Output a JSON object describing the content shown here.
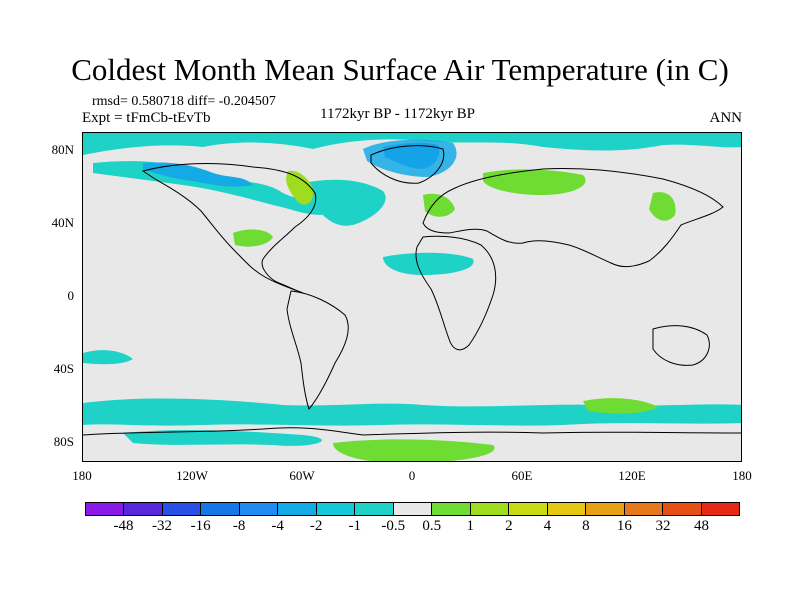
{
  "title": "Coldest Month Mean Surface Air Temperature (in C)",
  "stats_text": "rmsd= 0.580718 diff= -0.204507",
  "expt_text": "Expt = tFmCb-tEvTb",
  "period_text": "1172kyr BP - 1172kyr BP",
  "season_text": "ANN",
  "lat_labels": [
    "80N",
    "40N",
    "0",
    "40S",
    "80S"
  ],
  "lon_labels": [
    "180",
    "120W",
    "60W",
    "0",
    "60E",
    "120E",
    "180"
  ],
  "colorbar": {
    "labels": [
      "-48",
      "-32",
      "-16",
      "-8",
      "-4",
      "-2",
      "-1",
      "-0.5",
      "0.5",
      "1",
      "2",
      "4",
      "8",
      "16",
      "32",
      "48"
    ],
    "colors": [
      "#8c1ae6",
      "#5a28dc",
      "#2850e6",
      "#1478e6",
      "#1e8cf0",
      "#14aae6",
      "#14c8dc",
      "#1ed2c8",
      "#e8e8e8",
      "#6edc32",
      "#a0dc1e",
      "#c8dc14",
      "#e6c814",
      "#e6a014",
      "#e6781e",
      "#e65014",
      "#e62814"
    ]
  },
  "colors": {
    "neutral": "#e8e8e8",
    "cool_light": "#1ed2c8",
    "cool_mid": "#14aae6",
    "cool_dark": "#1478e6",
    "warm_light": "#6edc32",
    "warm_mid": "#a0dc1e"
  }
}
